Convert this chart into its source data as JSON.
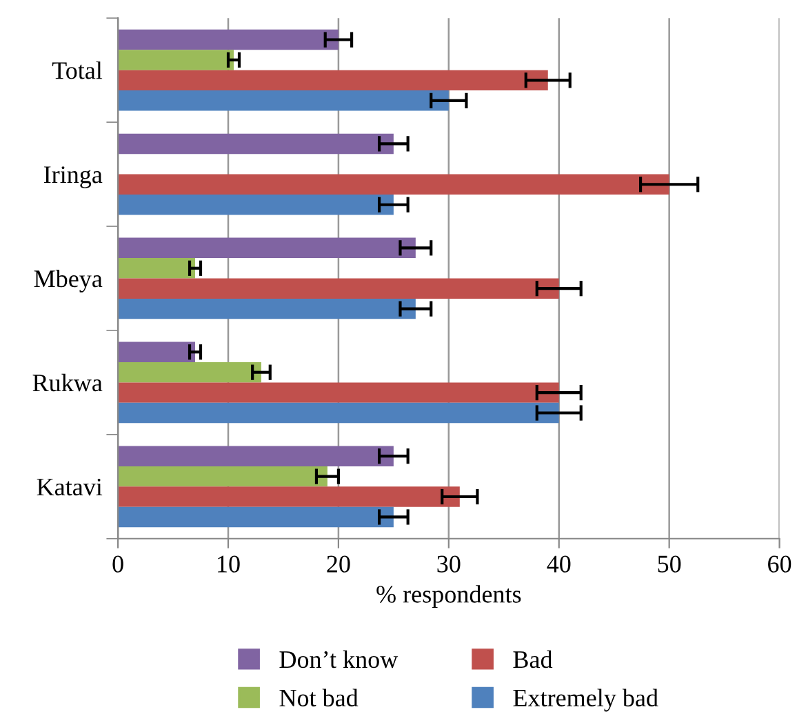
{
  "chart_data": {
    "type": "bar",
    "orientation": "horizontal",
    "xlabel": "% respondents",
    "categories": [
      "Total",
      "Iringa",
      "Mbeya",
      "Rukwa",
      "Katavi"
    ],
    "series": [
      {
        "name": "Don’t know",
        "color": "#8064a2",
        "values": [
          20,
          25,
          27,
          7,
          25
        ],
        "errors": [
          1.2,
          1.3,
          1.4,
          0.5,
          1.3
        ]
      },
      {
        "name": "Not bad",
        "color": "#9bbb59",
        "values": [
          10.5,
          null,
          7,
          13,
          19
        ],
        "errors": [
          0.5,
          null,
          0.5,
          0.8,
          1
        ]
      },
      {
        "name": "Bad",
        "color": "#c0504d",
        "values": [
          39,
          50,
          40,
          40,
          31
        ],
        "errors": [
          2,
          2.6,
          2,
          2,
          1.6
        ]
      },
      {
        "name": "Extremely bad",
        "color": "#4f81bd",
        "values": [
          30,
          25,
          27,
          40,
          25
        ],
        "errors": [
          1.6,
          1.3,
          1.4,
          2,
          1.3
        ]
      }
    ],
    "xlim": [
      0,
      60
    ],
    "xticks": [
      0,
      10,
      20,
      30,
      40,
      50,
      60
    ],
    "grid": "x",
    "legend": "bottom"
  }
}
